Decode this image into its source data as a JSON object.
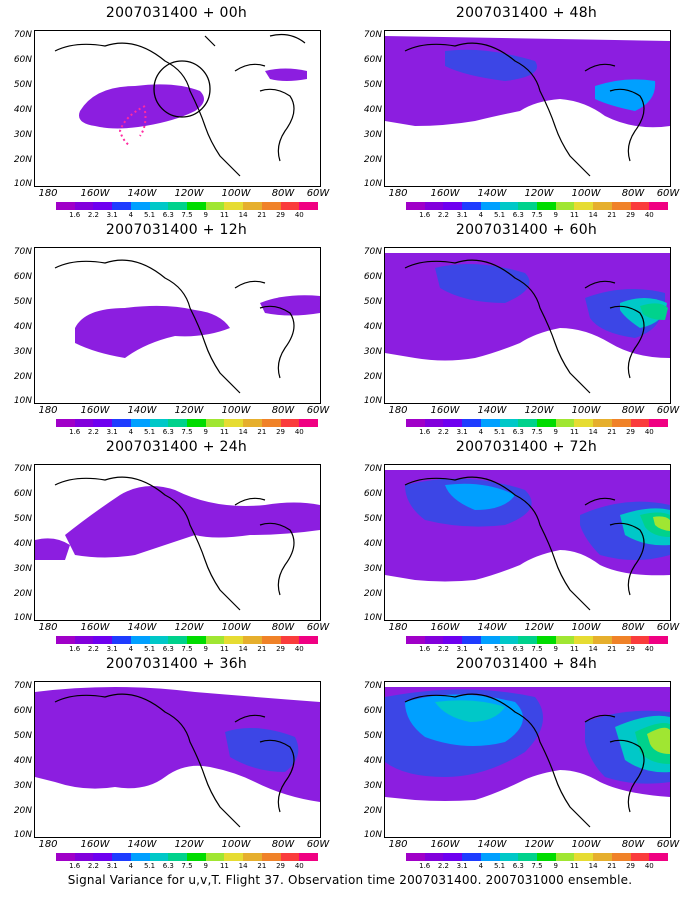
{
  "caption": "Signal Variance for u,v,T. Flight 37. Observation time 2007031400. 2007031000 ensemble.",
  "lat_labels": [
    "70N",
    "60N",
    "50N",
    "40N",
    "30N",
    "20N",
    "10N"
  ],
  "lon_labels": [
    "180",
    "160W",
    "140W",
    "120W",
    "100W",
    "80W",
    "60W"
  ],
  "colorbar": {
    "levels": [
      "1.6",
      "2.2",
      "3.1",
      "4",
      "5.1",
      "6.3",
      "7.5",
      "9",
      "11",
      "14",
      "21",
      "29",
      "40"
    ],
    "colors": [
      "#a000c8",
      "#8200dc",
      "#6e00f0",
      "#1e3cff",
      "#00a0ff",
      "#00c8c8",
      "#00d28c",
      "#00dc00",
      "#a0e632",
      "#e6dc32",
      "#e6af2d",
      "#f08228",
      "#fa3c3c",
      "#f00082"
    ]
  },
  "panels": [
    {
      "title": "2007031400 + 00h"
    },
    {
      "title": "2007031400 + 12h"
    },
    {
      "title": "2007031400 + 24h"
    },
    {
      "title": "2007031400 + 36h"
    },
    {
      "title": "2007031400 + 48h"
    },
    {
      "title": "2007031400 + 60h"
    },
    {
      "title": "2007031400 + 72h"
    },
    {
      "title": "2007031400 + 84h"
    }
  ]
}
